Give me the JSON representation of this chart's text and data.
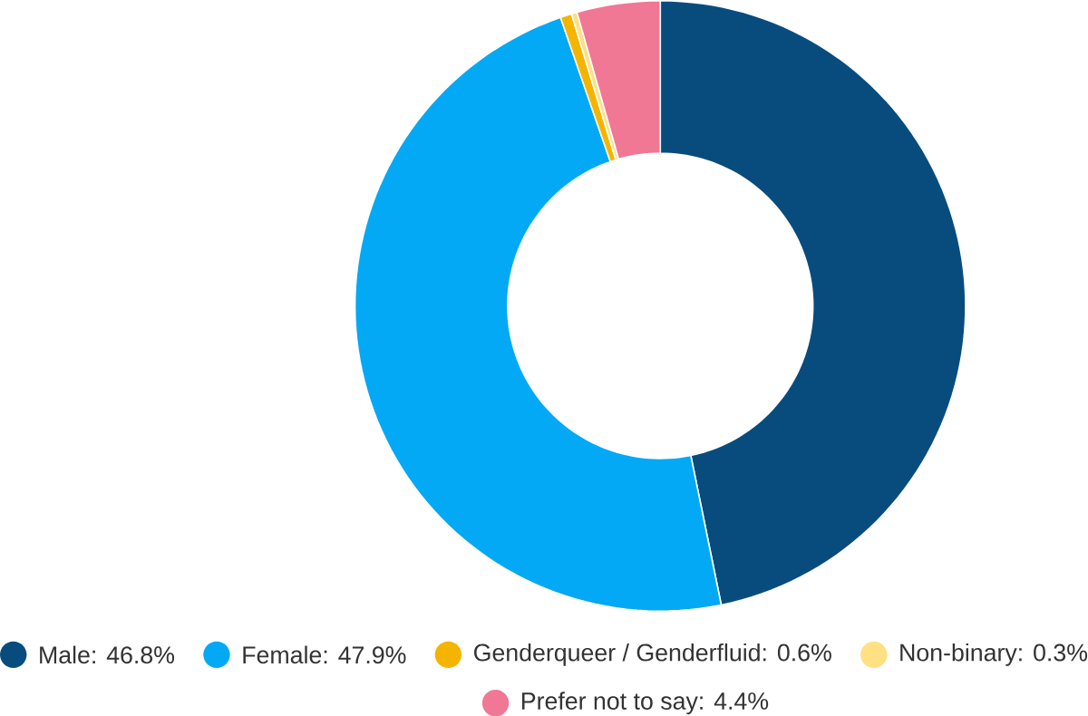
{
  "chart_data": {
    "type": "donut",
    "categories": [
      "Male: 46.8%",
      "Female: 47.9%",
      "Genderqueer / Genderfluid: 0.6%",
      "Non-binary: 0.3%",
      "Prefer not to say: 4.4%"
    ],
    "values": [
      46.8,
      47.9,
      0.6,
      0.3,
      4.4
    ],
    "colors": [
      "#084c7d",
      "#03a9f4",
      "#f5b400",
      "#ffe082",
      "#f07895"
    ],
    "legend": "bottom"
  }
}
